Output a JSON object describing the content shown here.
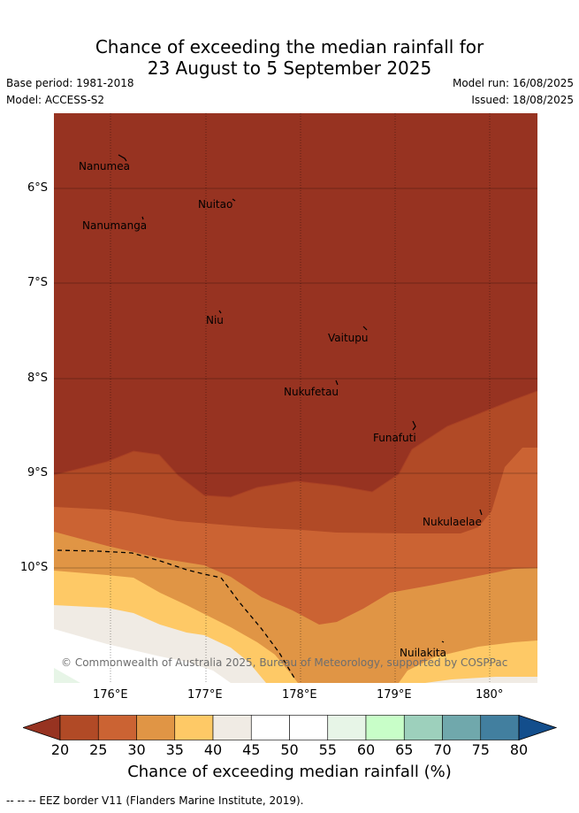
{
  "title_line1": "Chance of exceeding the median rainfall for",
  "title_line2": "23 August to 5 September 2025",
  "base_period": "Base period: 1981-2018",
  "model": "Model: ACCESS-S2",
  "model_run": "Model run: 16/08/2025",
  "issued": "Issued: 18/08/2025",
  "copyright": "© Commonwealth of Australia 2025, Bureau of Meteorology, supported by COSPPac",
  "x_ticks": [
    "176°E",
    "177°E",
    "178°E",
    "179°E",
    "180°"
  ],
  "y_ticks": [
    "6°S",
    "7°S",
    "8°S",
    "9°S",
    "10°S"
  ],
  "islands": [
    "Nanumea",
    "Nuitao",
    "Nanumanga",
    "Niu",
    "Vaitupu",
    "Nukufetau",
    "Funafuti",
    "Nukulaelae",
    "Nuilakita"
  ],
  "colorbar": {
    "labels": [
      "20",
      "25",
      "30",
      "35",
      "40",
      "45",
      "50",
      "55",
      "60",
      "65",
      "70",
      "75",
      "80"
    ],
    "colors": [
      "#973321",
      "#b14a26",
      "#cb6333",
      "#e09545",
      "#fec966",
      "#f0ebe4",
      "#ffffff",
      "#ffffff",
      "#e7f5e7",
      "#c8fec8",
      "#9dd0bc",
      "#70a8ac",
      "#427f9f",
      "#134e8c"
    ],
    "title": "Chance of exceeding median rainfall (%)"
  },
  "eez_note": "-- -- -- EEZ border V11 (Flanders Marine Institute, 2019)."
}
